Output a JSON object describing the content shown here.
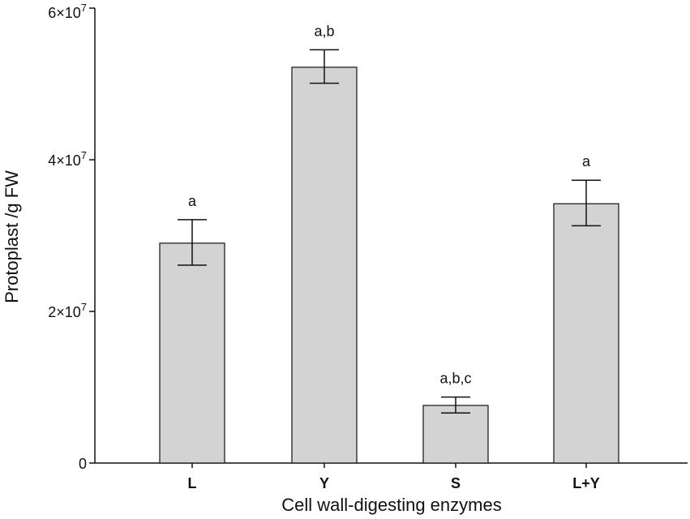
{
  "chart_data": {
    "type": "bar",
    "title": "",
    "xlabel": "Cell wall-digesting enzymes",
    "ylabel": "Protoplast /g FW",
    "categories": [
      "L",
      "Y",
      "S",
      "L+Y"
    ],
    "values": [
      29000000,
      52200000,
      7600000,
      34200000
    ],
    "error_low": [
      26100000,
      50100000,
      6600000,
      31300000
    ],
    "error_high": [
      32100000,
      54500000,
      8700000,
      37300000
    ],
    "annotations": [
      "a",
      "a,b",
      "a,b,c",
      "a"
    ],
    "ylim": [
      0,
      60000000
    ],
    "y_ticks": [
      {
        "value": 0,
        "base": "0",
        "exp": ""
      },
      {
        "value": 20000000,
        "base": "2×10",
        "exp": "7"
      },
      {
        "value": 40000000,
        "base": "4×10",
        "exp": "7"
      },
      {
        "value": 60000000,
        "base": "6×10",
        "exp": "7"
      }
    ],
    "bar_color": "#d3d3d3",
    "edge_color": "#111111",
    "grid": false,
    "legend": "none"
  }
}
